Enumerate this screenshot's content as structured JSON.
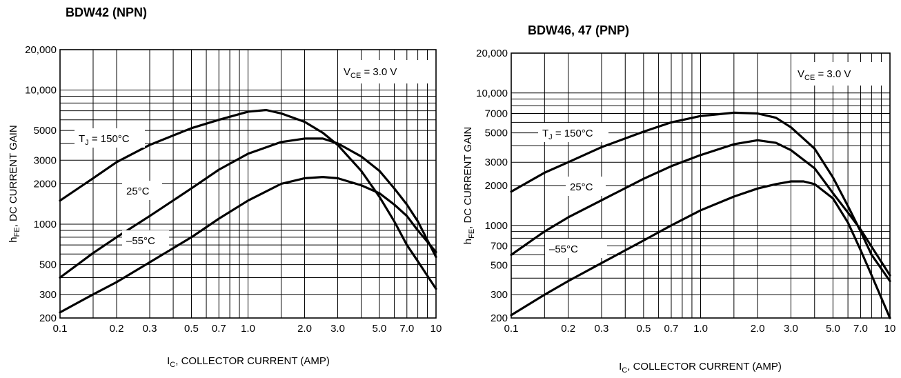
{
  "chart_data": [
    {
      "type": "line",
      "title": "BDW42 (NPN)",
      "xlabel": "I_C, COLLECTOR CURRENT (AMP)",
      "ylabel": "h_FE, DC CURRENT GAIN",
      "x_scale": "log",
      "y_scale": "log",
      "xlim": [
        0.1,
        10
      ],
      "ylim": [
        200,
        20000
      ],
      "x_tick_values": [
        0.1,
        0.2,
        0.3,
        0.5,
        0.7,
        1.0,
        2.0,
        3.0,
        5.0,
        7.0,
        10
      ],
      "x_tick_labels": [
        "0.1",
        "0.2",
        "0.3",
        "0.5",
        "0.7",
        "1.0",
        "2.0",
        "3.0",
        "5.0",
        "7.0",
        "10"
      ],
      "y_tick_values": [
        200,
        300,
        500,
        1000,
        2000,
        3000,
        5000,
        10000,
        20000
      ],
      "y_tick_labels": [
        "200",
        "300",
        "500",
        "1000",
        "2000",
        "3000",
        "5000",
        "10,000",
        "20,000"
      ],
      "grid": true,
      "condition": {
        "main": "V",
        "sub": "CE",
        "rest": " = 3.0 V"
      },
      "series": [
        {
          "name": "T_J = 150°C",
          "label": {
            "main": "T",
            "sub": "J",
            "rest": " = 150°C"
          },
          "x": [
            0.1,
            0.15,
            0.2,
            0.3,
            0.5,
            0.7,
            1.0,
            1.25,
            1.5,
            2.0,
            2.5,
            3.0,
            4.0,
            5.0,
            6.0,
            7.0,
            8.0,
            10.0
          ],
          "y": [
            1500,
            2200,
            2900,
            3900,
            5200,
            6000,
            6900,
            7100,
            6700,
            5800,
            4800,
            3900,
            2500,
            1600,
            1050,
            700,
            530,
            330
          ]
        },
        {
          "name": "25°C",
          "label": {
            "main": "25°C",
            "sub": "",
            "rest": ""
          },
          "x": [
            0.1,
            0.15,
            0.2,
            0.3,
            0.5,
            0.7,
            1.0,
            1.5,
            2.0,
            2.5,
            3.0,
            4.0,
            5.0,
            6.0,
            7.0,
            8.0,
            10.0
          ],
          "y": [
            400,
            610,
            800,
            1150,
            1850,
            2550,
            3350,
            4100,
            4350,
            4350,
            4000,
            3200,
            2500,
            1850,
            1400,
            1050,
            570
          ]
        },
        {
          "name": "-55°C",
          "label": {
            "main": "–55°C",
            "sub": "",
            "rest": ""
          },
          "x": [
            0.1,
            0.15,
            0.2,
            0.3,
            0.5,
            0.7,
            1.0,
            1.5,
            2.0,
            2.5,
            3.0,
            4.0,
            5.0,
            6.0,
            7.0,
            8.0,
            10.0
          ],
          "y": [
            220,
            300,
            370,
            520,
            800,
            1100,
            1500,
            2000,
            2200,
            2250,
            2200,
            1950,
            1700,
            1400,
            1150,
            900,
            620
          ]
        }
      ]
    },
    {
      "type": "line",
      "title": "BDW46, 47 (PNP)",
      "xlabel": "I_C, COLLECTOR CURRENT (AMP)",
      "ylabel": "h_FE, DC CURRENT GAIN",
      "x_scale": "log",
      "y_scale": "log",
      "xlim": [
        0.1,
        10
      ],
      "ylim": [
        200,
        20000
      ],
      "x_tick_values": [
        0.1,
        0.2,
        0.3,
        0.5,
        0.7,
        1.0,
        2.0,
        3.0,
        5.0,
        7.0,
        10
      ],
      "x_tick_labels": [
        "0.1",
        "0.2",
        "0.3",
        "0.5",
        "0.7",
        "1.0",
        "2.0",
        "3.0",
        "5.0",
        "7.0",
        "10"
      ],
      "y_tick_values": [
        200,
        300,
        500,
        700,
        1000,
        2000,
        3000,
        5000,
        7000,
        10000,
        20000
      ],
      "y_tick_labels": [
        "200",
        "300",
        "500",
        "700",
        "1000",
        "2000",
        "3000",
        "5000",
        "7000",
        "10,000",
        "20,000"
      ],
      "grid": true,
      "condition": {
        "main": "V",
        "sub": "CE",
        "rest": " = 3.0 V"
      },
      "series": [
        {
          "name": "T_J = 150°C",
          "label": {
            "main": "T",
            "sub": "J",
            "rest": " = 150°C"
          },
          "x": [
            0.1,
            0.15,
            0.2,
            0.3,
            0.5,
            0.7,
            1.0,
            1.5,
            2.0,
            2.5,
            3.0,
            4.0,
            5.0,
            6.0,
            7.0,
            8.0,
            10.0
          ],
          "y": [
            1800,
            2500,
            3000,
            3900,
            5100,
            6000,
            6700,
            7100,
            7000,
            6500,
            5500,
            3800,
            2300,
            1400,
            900,
            600,
            380
          ]
        },
        {
          "name": "25°C",
          "label": {
            "main": "25°C",
            "sub": "",
            "rest": ""
          },
          "x": [
            0.1,
            0.15,
            0.2,
            0.3,
            0.5,
            0.7,
            1.0,
            1.5,
            2.0,
            2.5,
            3.0,
            4.0,
            5.0,
            6.0,
            7.0,
            8.0,
            10.0
          ],
          "y": [
            600,
            900,
            1150,
            1550,
            2250,
            2800,
            3400,
            4100,
            4400,
            4200,
            3700,
            2700,
            1750,
            1250,
            930,
            690,
            420
          ]
        },
        {
          "name": "-55°C",
          "label": {
            "main": "–55°C",
            "sub": "",
            "rest": ""
          },
          "x": [
            0.1,
            0.15,
            0.2,
            0.3,
            0.5,
            0.7,
            1.0,
            1.5,
            2.0,
            2.5,
            3.0,
            3.5,
            4.0,
            5.0,
            6.0,
            7.0,
            8.0,
            10.0
          ],
          "y": [
            210,
            300,
            380,
            520,
            770,
            1000,
            1300,
            1650,
            1900,
            2050,
            2150,
            2150,
            2050,
            1600,
            1050,
            650,
            420,
            200
          ]
        }
      ]
    }
  ]
}
